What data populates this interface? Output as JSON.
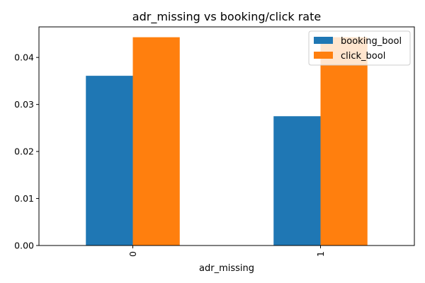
{
  "chart_data": {
    "type": "bar",
    "title": "adr_missing vs booking/click rate",
    "xlabel": "adr_missing",
    "ylabel": "",
    "categories": [
      "0",
      "1"
    ],
    "series": [
      {
        "name": "booking_bool",
        "values": [
          0.0361,
          0.0275
        ],
        "color": "#1f77b4"
      },
      {
        "name": "click_bool",
        "values": [
          0.0443,
          0.0443
        ],
        "color": "#ff7f0e"
      }
    ],
    "ylim": [
      0,
      0.0465
    ],
    "yticks": [
      "0.00",
      "0.01",
      "0.02",
      "0.03",
      "0.04"
    ],
    "ytick_values": [
      0,
      0.01,
      0.02,
      0.03,
      0.04
    ],
    "legend_position": "top-right",
    "grid": false,
    "xtick_rotation": "vertical"
  }
}
